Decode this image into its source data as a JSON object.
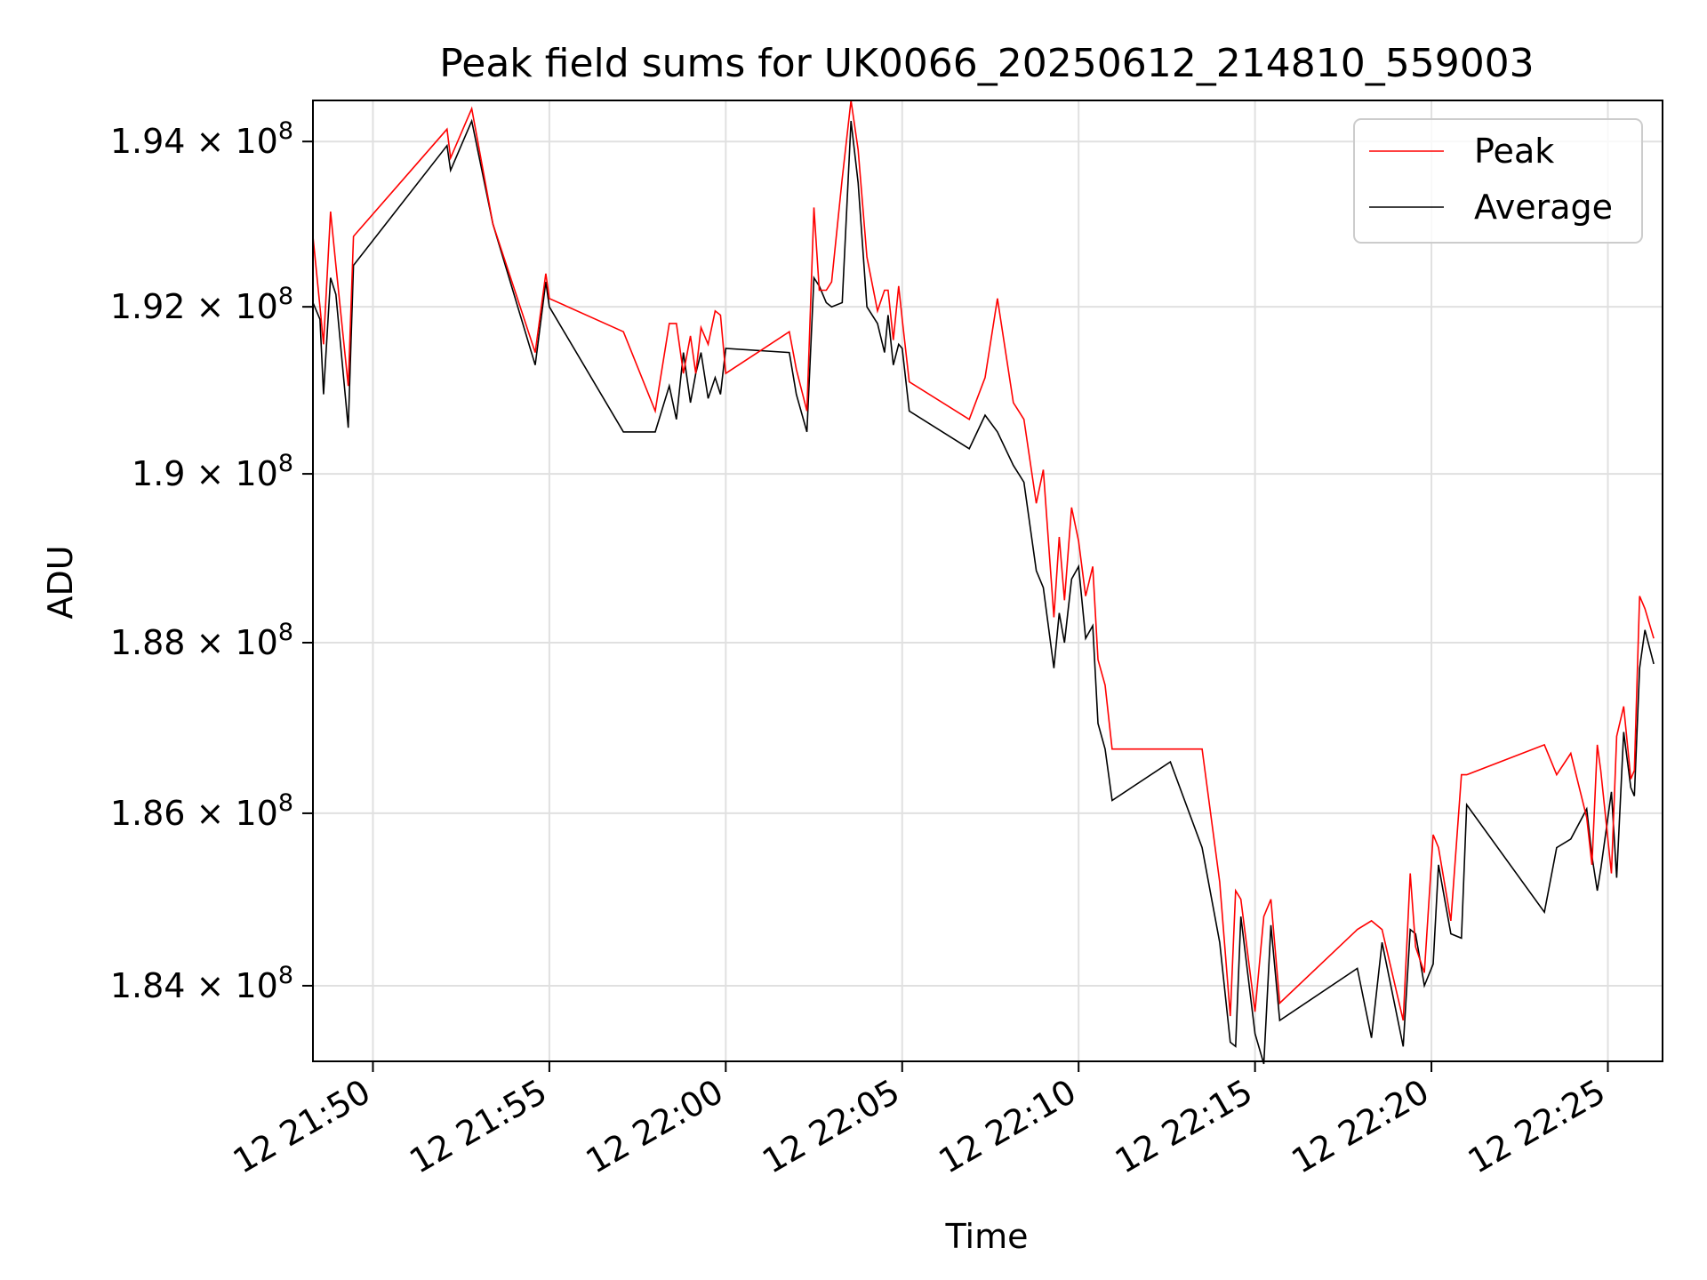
{
  "chart_data": {
    "type": "line",
    "title": "Peak field sums for UK0066_20250612_214810_559003",
    "xlabel": "Time",
    "ylabel": "ADU",
    "x_tick_labels": [
      "12 21:50",
      "12 21:55",
      "12 22:00",
      "12 22:05",
      "12 22:10",
      "12 22:15",
      "12 22:20",
      "12 22:25"
    ],
    "x_tick_values_min": [
      50,
      55,
      60,
      65,
      70,
      75,
      80,
      85
    ],
    "xlim_min": [
      48.3,
      86.55
    ],
    "y_tick_labels": [
      {
        "mantissa": "1.84",
        "exponent": "8",
        "value": 184000000
      },
      {
        "mantissa": "1.86",
        "exponent": "8",
        "value": 186000000
      },
      {
        "mantissa": "1.88",
        "exponent": "8",
        "value": 188000000
      },
      {
        "mantissa": "1.9",
        "exponent": "8",
        "value": 190000000
      },
      {
        "mantissa": "1.92",
        "exponent": "8",
        "value": 192000000
      },
      {
        "mantissa": "1.94",
        "exponent": "8",
        "value": 194000000
      }
    ],
    "ylim": [
      183130000,
      194500000
    ],
    "y_scale": "log",
    "grid": true,
    "legend_position": "top-right",
    "series": [
      {
        "name": "Peak",
        "color": "#ff0000",
        "points": [
          [
            48.3,
            192.85
          ],
          [
            48.5,
            192.0
          ],
          [
            48.6,
            191.55
          ],
          [
            48.8,
            193.15
          ],
          [
            48.95,
            192.5
          ],
          [
            49.3,
            191.05
          ],
          [
            49.45,
            192.85
          ],
          [
            52.1,
            194.15
          ],
          [
            52.2,
            193.8
          ],
          [
            52.8,
            194.4
          ],
          [
            53.4,
            193.0
          ],
          [
            54.6,
            191.45
          ],
          [
            54.9,
            192.4
          ],
          [
            55.0,
            192.1
          ],
          [
            57.1,
            191.7
          ],
          [
            58.0,
            190.75
          ],
          [
            58.4,
            191.8
          ],
          [
            58.6,
            191.8
          ],
          [
            58.8,
            191.2
          ],
          [
            59.0,
            191.65
          ],
          [
            59.15,
            191.2
          ],
          [
            59.3,
            191.75
          ],
          [
            59.5,
            191.55
          ],
          [
            59.7,
            191.95
          ],
          [
            59.85,
            191.9
          ],
          [
            60.0,
            191.2
          ],
          [
            61.8,
            191.7
          ],
          [
            62.0,
            191.25
          ],
          [
            62.3,
            190.75
          ],
          [
            62.5,
            193.2
          ],
          [
            62.65,
            192.2
          ],
          [
            62.85,
            192.2
          ],
          [
            63.0,
            192.3
          ],
          [
            63.3,
            193.55
          ],
          [
            63.55,
            194.5
          ],
          [
            63.75,
            193.9
          ],
          [
            64.0,
            192.6
          ],
          [
            64.3,
            191.95
          ],
          [
            64.5,
            192.2
          ],
          [
            64.6,
            192.2
          ],
          [
            64.75,
            191.6
          ],
          [
            64.9,
            192.25
          ],
          [
            65.0,
            191.85
          ],
          [
            65.2,
            191.1
          ],
          [
            66.9,
            190.65
          ],
          [
            67.35,
            191.15
          ],
          [
            67.7,
            192.1
          ],
          [
            68.15,
            190.85
          ],
          [
            68.45,
            190.65
          ],
          [
            68.8,
            189.65
          ],
          [
            69.0,
            190.05
          ],
          [
            69.3,
            188.3
          ],
          [
            69.45,
            189.25
          ],
          [
            69.6,
            188.5
          ],
          [
            69.8,
            189.6
          ],
          [
            70.0,
            189.2
          ],
          [
            70.2,
            188.55
          ],
          [
            70.4,
            188.9
          ],
          [
            70.55,
            187.8
          ],
          [
            70.75,
            187.5
          ],
          [
            70.95,
            186.75
          ],
          [
            72.6,
            186.75
          ],
          [
            73.5,
            186.75
          ],
          [
            74.0,
            185.2
          ],
          [
            74.3,
            183.65
          ],
          [
            74.45,
            185.1
          ],
          [
            74.6,
            185.0
          ],
          [
            75.0,
            183.7
          ],
          [
            75.25,
            184.8
          ],
          [
            75.45,
            185.0
          ],
          [
            75.7,
            183.8
          ],
          [
            77.9,
            184.65
          ],
          [
            78.3,
            184.75
          ],
          [
            78.6,
            184.65
          ],
          [
            79.2,
            183.6
          ],
          [
            79.4,
            185.3
          ],
          [
            79.55,
            184.45
          ],
          [
            79.8,
            184.15
          ],
          [
            80.05,
            185.75
          ],
          [
            80.2,
            185.6
          ],
          [
            80.55,
            184.75
          ],
          [
            80.85,
            186.45
          ],
          [
            81.0,
            186.45
          ],
          [
            83.2,
            186.8
          ],
          [
            83.55,
            186.45
          ],
          [
            83.95,
            186.7
          ],
          [
            84.4,
            185.95
          ],
          [
            84.55,
            185.4
          ],
          [
            84.7,
            186.8
          ],
          [
            84.8,
            186.5
          ],
          [
            85.1,
            185.3
          ],
          [
            85.25,
            186.9
          ],
          [
            85.45,
            187.25
          ],
          [
            85.65,
            186.4
          ],
          [
            85.75,
            186.5
          ],
          [
            85.9,
            188.55
          ],
          [
            86.05,
            188.4
          ],
          [
            86.3,
            188.05
          ]
        ]
      },
      {
        "name": "Average",
        "color": "#000000",
        "points": [
          [
            48.3,
            192.05
          ],
          [
            48.5,
            191.85
          ],
          [
            48.6,
            190.95
          ],
          [
            48.8,
            192.35
          ],
          [
            48.95,
            192.15
          ],
          [
            49.3,
            190.55
          ],
          [
            49.45,
            192.5
          ],
          [
            52.1,
            193.95
          ],
          [
            52.2,
            193.65
          ],
          [
            52.8,
            194.25
          ],
          [
            53.4,
            193.0
          ],
          [
            54.6,
            191.3
          ],
          [
            54.9,
            192.3
          ],
          [
            55.0,
            192.0
          ],
          [
            57.1,
            190.5
          ],
          [
            58.0,
            190.5
          ],
          [
            58.4,
            191.05
          ],
          [
            58.6,
            190.65
          ],
          [
            58.8,
            191.45
          ],
          [
            59.0,
            190.85
          ],
          [
            59.15,
            191.2
          ],
          [
            59.3,
            191.45
          ],
          [
            59.5,
            190.9
          ],
          [
            59.7,
            191.15
          ],
          [
            59.85,
            190.95
          ],
          [
            60.0,
            191.5
          ],
          [
            61.8,
            191.45
          ],
          [
            62.0,
            190.95
          ],
          [
            62.3,
            190.5
          ],
          [
            62.5,
            192.35
          ],
          [
            62.65,
            192.25
          ],
          [
            62.85,
            192.05
          ],
          [
            63.0,
            192.0
          ],
          [
            63.3,
            192.05
          ],
          [
            63.55,
            194.25
          ],
          [
            63.75,
            193.5
          ],
          [
            64.0,
            192.0
          ],
          [
            64.3,
            191.8
          ],
          [
            64.5,
            191.45
          ],
          [
            64.6,
            191.9
          ],
          [
            64.75,
            191.3
          ],
          [
            64.9,
            191.55
          ],
          [
            65.0,
            191.5
          ],
          [
            65.2,
            190.75
          ],
          [
            66.9,
            190.3
          ],
          [
            67.35,
            190.7
          ],
          [
            67.7,
            190.5
          ],
          [
            68.15,
            190.1
          ],
          [
            68.45,
            189.9
          ],
          [
            68.8,
            188.85
          ],
          [
            69.0,
            188.65
          ],
          [
            69.3,
            187.7
          ],
          [
            69.45,
            188.35
          ],
          [
            69.6,
            188.0
          ],
          [
            69.8,
            188.75
          ],
          [
            70.0,
            188.9
          ],
          [
            70.2,
            188.05
          ],
          [
            70.4,
            188.2
          ],
          [
            70.55,
            187.05
          ],
          [
            70.75,
            186.75
          ],
          [
            70.95,
            186.15
          ],
          [
            72.6,
            186.6
          ],
          [
            73.5,
            185.6
          ],
          [
            74.0,
            184.5
          ],
          [
            74.3,
            183.35
          ],
          [
            74.45,
            183.3
          ],
          [
            74.6,
            184.8
          ],
          [
            75.0,
            183.45
          ],
          [
            75.25,
            183.1
          ],
          [
            75.45,
            184.7
          ],
          [
            75.7,
            183.6
          ],
          [
            77.9,
            184.2
          ],
          [
            78.3,
            183.4
          ],
          [
            78.6,
            184.5
          ],
          [
            79.2,
            183.3
          ],
          [
            79.4,
            184.65
          ],
          [
            79.55,
            184.6
          ],
          [
            79.8,
            184.0
          ],
          [
            80.05,
            184.25
          ],
          [
            80.2,
            185.4
          ],
          [
            80.55,
            184.6
          ],
          [
            80.85,
            184.55
          ],
          [
            81.0,
            186.1
          ],
          [
            83.2,
            184.85
          ],
          [
            83.55,
            185.6
          ],
          [
            83.95,
            185.7
          ],
          [
            84.4,
            186.05
          ],
          [
            84.55,
            185.5
          ],
          [
            84.7,
            185.1
          ],
          [
            84.8,
            185.35
          ],
          [
            85.1,
            186.25
          ],
          [
            85.25,
            185.25
          ],
          [
            85.45,
            186.95
          ],
          [
            85.65,
            186.3
          ],
          [
            85.75,
            186.2
          ],
          [
            85.9,
            187.7
          ],
          [
            86.05,
            188.15
          ],
          [
            86.3,
            187.75
          ]
        ]
      }
    ]
  }
}
